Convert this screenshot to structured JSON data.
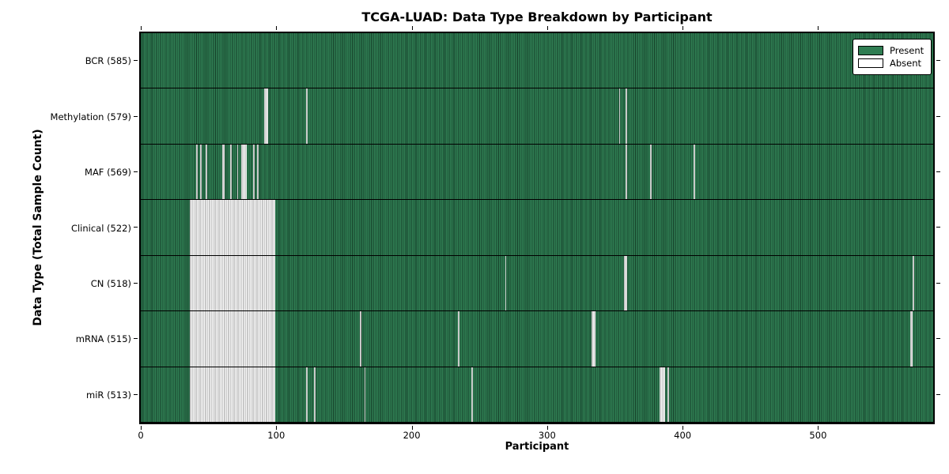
{
  "figure": {
    "title": "TCGA-LUAD: Data Type Breakdown by Participant",
    "xlabel": "Participant",
    "ylabel": "Data Type (Total Sample Count)"
  },
  "legend": {
    "items": [
      {
        "label": "Present",
        "color": "#2f7d52"
      },
      {
        "label": "Absent",
        "color": "#ffffff"
      }
    ]
  },
  "chart_data": {
    "type": "heatmap",
    "title": "TCGA-LUAD: Data Type Breakdown by Participant",
    "xlabel": "Participant",
    "ylabel": "Data Type (Total Sample Count)",
    "legend_position": "upper right",
    "xlim": [
      0,
      585
    ],
    "x_ticks": [
      0,
      100,
      200,
      300,
      400,
      500
    ],
    "total_participants": 585,
    "colors": {
      "present": "#2f7d52",
      "present_edge": "#153f29",
      "absent": "#ffffff",
      "absent_edge": "#9a9a9a",
      "frame": "#000000"
    },
    "rows": [
      {
        "name": "BCR",
        "label": "BCR (585)",
        "count": 585,
        "absent_ranges": []
      },
      {
        "name": "Methylation",
        "label": "Methylation (579)",
        "count": 579,
        "absent_ranges": [
          [
            91,
            93
          ],
          [
            122,
            122
          ],
          [
            353,
            353
          ],
          [
            358,
            358
          ]
        ]
      },
      {
        "name": "MAF",
        "label": "MAF (569)",
        "count": 569,
        "absent_ranges": [
          [
            41,
            41
          ],
          [
            44,
            44
          ],
          [
            48,
            48
          ],
          [
            60,
            61
          ],
          [
            66,
            66
          ],
          [
            71,
            71
          ],
          [
            74,
            77
          ],
          [
            83,
            83
          ],
          [
            86,
            86
          ],
          [
            358,
            358
          ],
          [
            376,
            376
          ],
          [
            408,
            408
          ]
        ]
      },
      {
        "name": "Clinical",
        "label": "Clinical (522)",
        "count": 522,
        "absent_ranges": [
          [
            36,
            98
          ]
        ]
      },
      {
        "name": "CN",
        "label": "CN (518)",
        "count": 518,
        "absent_ranges": [
          [
            36,
            98
          ],
          [
            269,
            269
          ],
          [
            357,
            358
          ],
          [
            570,
            570
          ]
        ]
      },
      {
        "name": "mRNA",
        "label": "mRNA (515)",
        "count": 515,
        "absent_ranges": [
          [
            36,
            98
          ],
          [
            162,
            162
          ],
          [
            234,
            234
          ],
          [
            333,
            335
          ],
          [
            568,
            569
          ]
        ]
      },
      {
        "name": "miR",
        "label": "miR (513)",
        "count": 513,
        "absent_ranges": [
          [
            36,
            98
          ],
          [
            122,
            122
          ],
          [
            128,
            128
          ],
          [
            165,
            165
          ],
          [
            244,
            244
          ],
          [
            383,
            386
          ],
          [
            389,
            389
          ]
        ]
      }
    ]
  }
}
